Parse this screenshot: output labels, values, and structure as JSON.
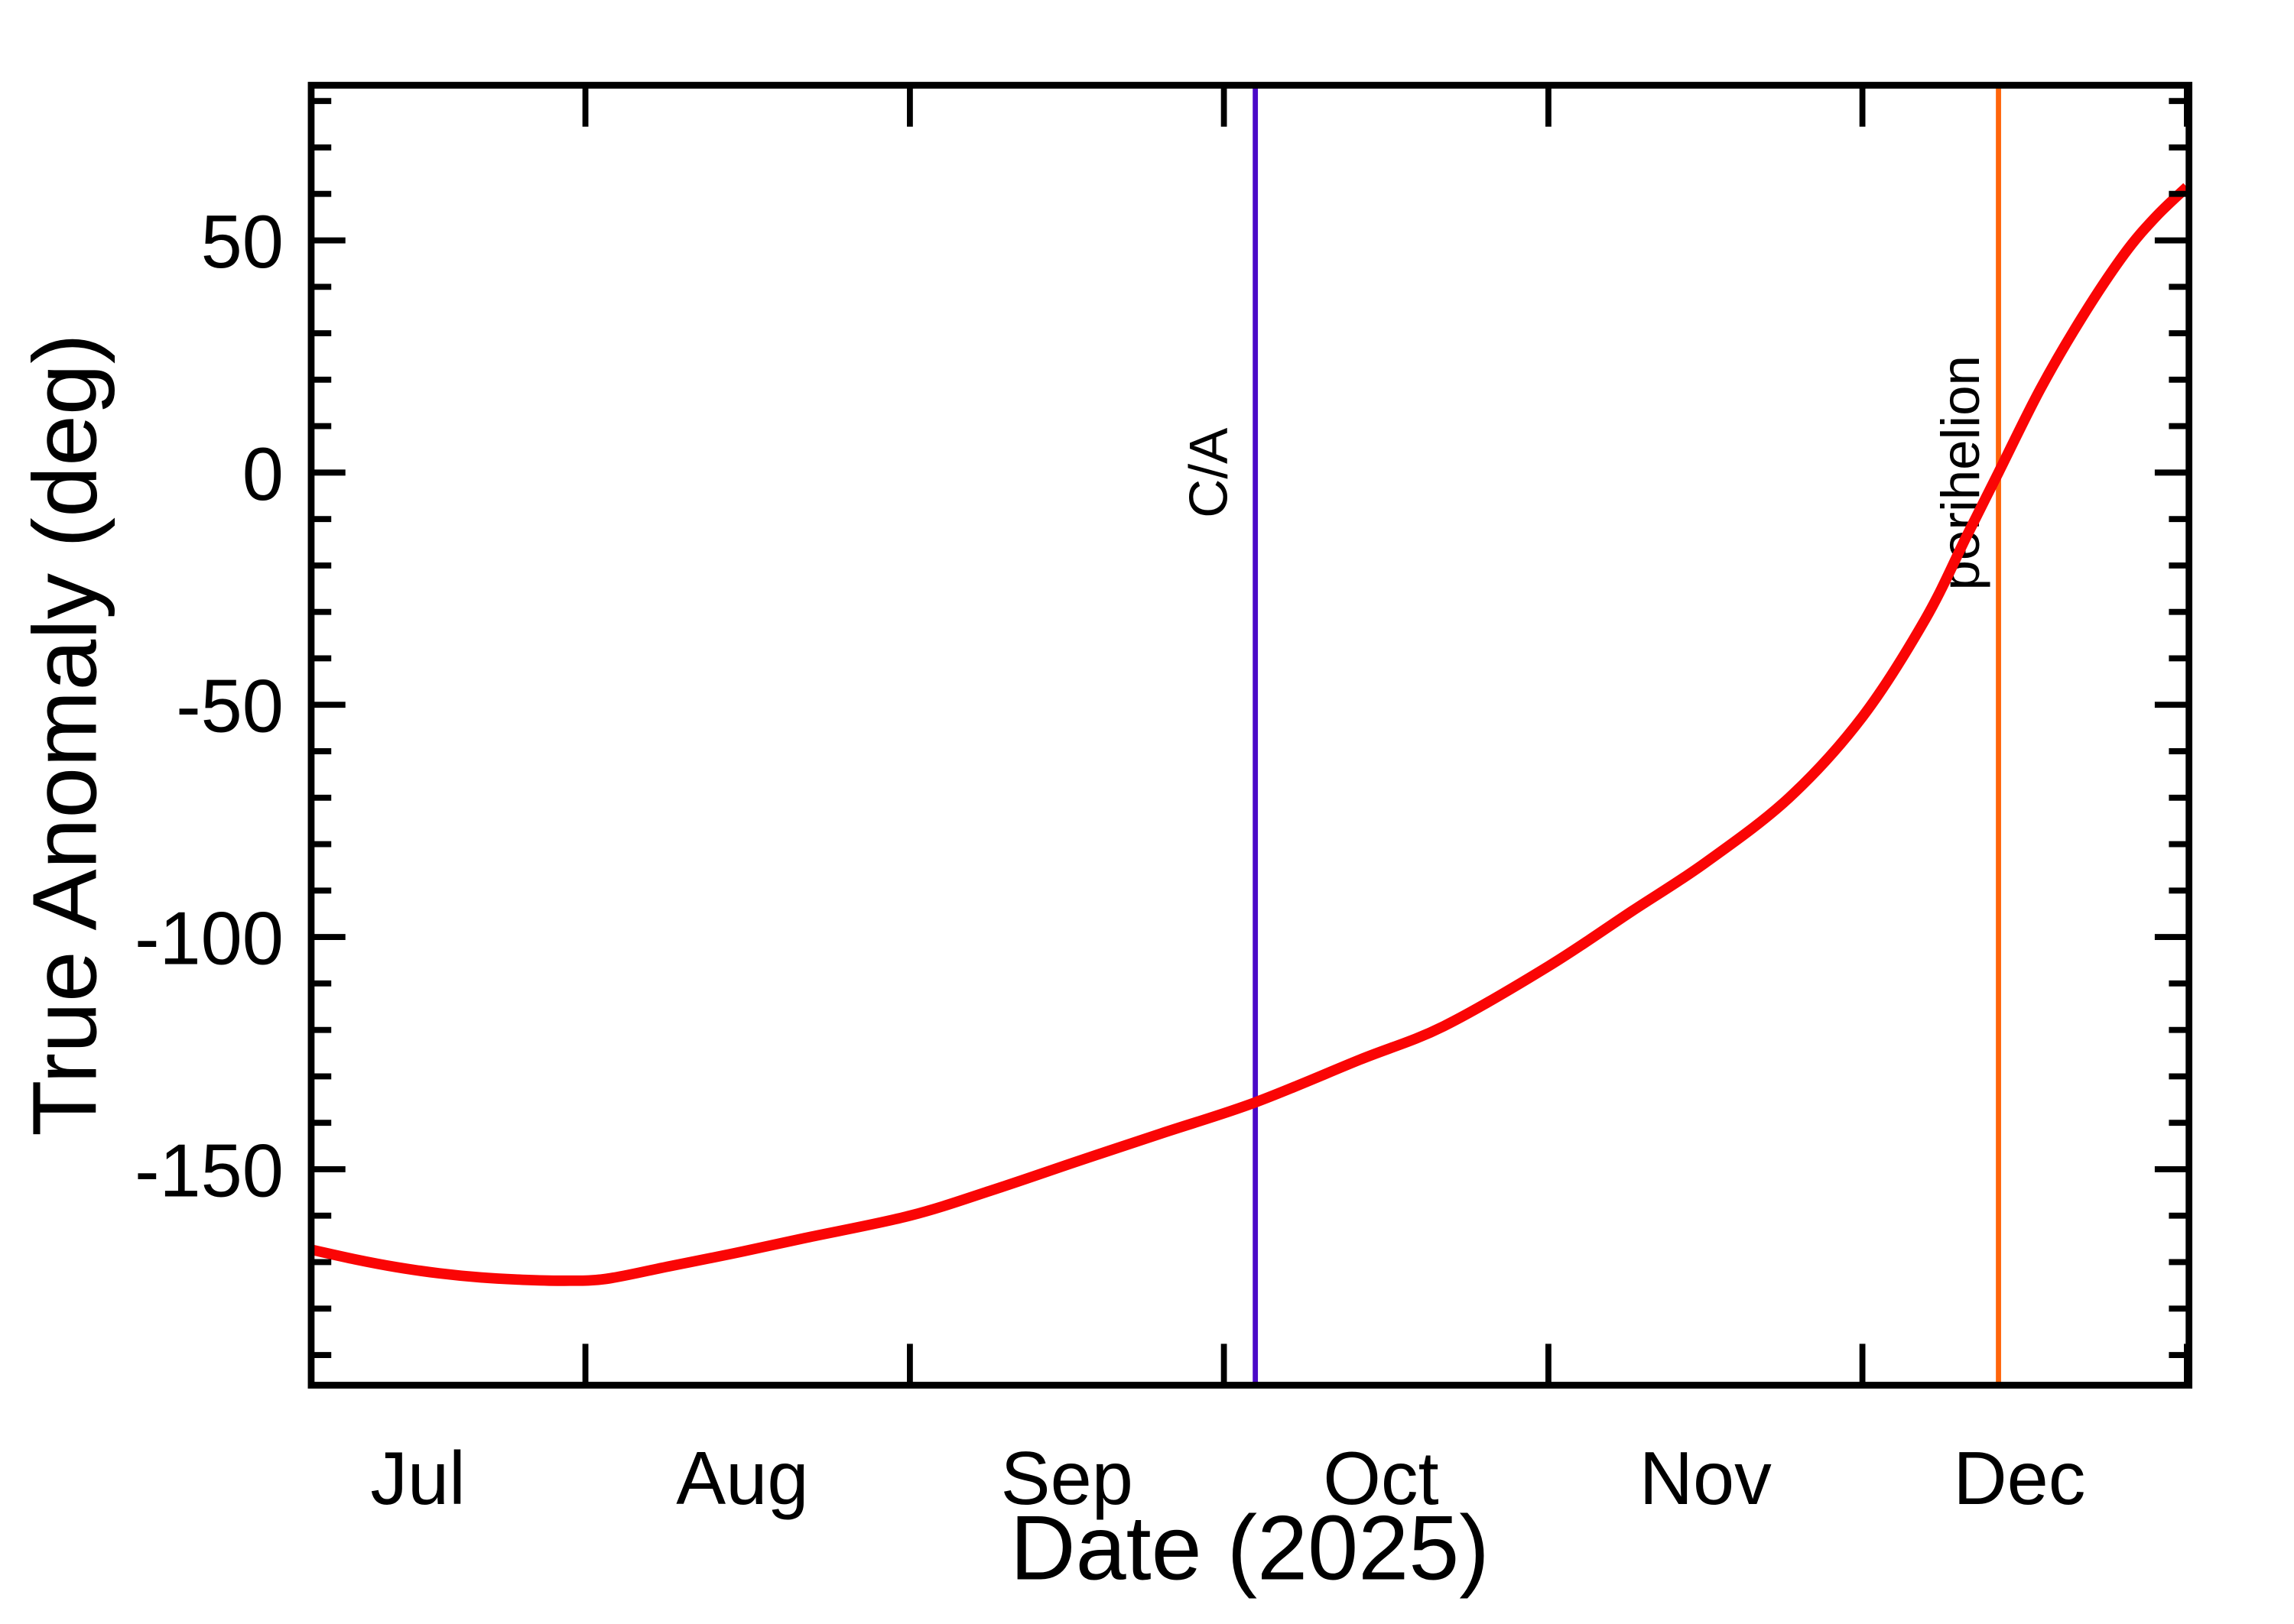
{
  "figure": {
    "background": "#ffffff",
    "axis_color": "#000000"
  },
  "chart_data": {
    "type": "line",
    "title": "",
    "xlabel": "Date (2025)",
    "ylabel": "True Anomaly (deg)",
    "grid": false,
    "legend": "none",
    "ylim": [
      -196.5,
      83.4
    ],
    "xlim_dates": [
      "2025-07-05",
      "2026-01-01"
    ],
    "y_major_ticks": [
      50,
      0,
      -50,
      -100,
      -150
    ],
    "y_minor_step": 10,
    "x_tick_dates": [
      "2025-08-01",
      "2025-09-01",
      "2025-10-01",
      "2025-11-01",
      "2025-12-01",
      "2026-01-01"
    ],
    "x_month_labels": [
      {
        "label": "Jul",
        "date": "2025-07-16"
      },
      {
        "label": "Aug",
        "date": "2025-08-16"
      },
      {
        "label": "Sep",
        "date": "2025-09-16"
      },
      {
        "label": "Oct",
        "date": "2025-10-16"
      },
      {
        "label": "Nov",
        "date": "2025-11-16"
      },
      {
        "label": "Dec",
        "date": "2025-12-16"
      }
    ],
    "series": [
      {
        "name": "true-anomaly",
        "color": "#fa0505",
        "points": [
          [
            "2025-07-05",
            -166.9
          ],
          [
            "2025-07-10",
            -169.4
          ],
          [
            "2025-07-14",
            -171.1
          ],
          [
            "2025-07-18",
            -172.4
          ],
          [
            "2025-07-22",
            -173.3
          ],
          [
            "2025-07-26",
            -173.8
          ],
          [
            "2025-07-30",
            -174.0
          ],
          [
            "2025-08-03",
            -173.6
          ],
          [
            "2025-08-09",
            -170.9
          ],
          [
            "2025-08-15",
            -168.2
          ],
          [
            "2025-08-22",
            -164.8
          ],
          [
            "2025-09-01",
            -160.0
          ],
          [
            "2025-09-09",
            -154.4
          ],
          [
            "2025-09-17",
            -148.3
          ],
          [
            "2025-09-25",
            -142.3
          ],
          [
            "2025-10-04",
            -135.6
          ],
          [
            "2025-10-14",
            -126.4
          ],
          [
            "2025-10-22",
            -119.2
          ],
          [
            "2025-11-01",
            -106.3
          ],
          [
            "2025-11-09",
            -94.4
          ],
          [
            "2025-11-16",
            -84.0
          ],
          [
            "2025-11-24",
            -70.0
          ],
          [
            "2025-12-01",
            -52.6
          ],
          [
            "2025-12-07",
            -31.6
          ],
          [
            "2025-12-11",
            -13.5
          ],
          [
            "2025-12-14",
            0.0
          ],
          [
            "2025-12-18",
            18.0
          ],
          [
            "2025-12-22",
            33.5
          ],
          [
            "2025-12-26",
            47.0
          ],
          [
            "2025-12-29",
            55.0
          ],
          [
            "2026-01-01",
            61.5
          ]
        ]
      }
    ],
    "event_lines": [
      {
        "label": "C/A",
        "date": "2025-10-04",
        "color": "#4b09c8",
        "label_offset": -38
      },
      {
        "label": "perihelion",
        "date": "2025-12-14",
        "color": "#ff640a",
        "label_offset": -26
      }
    ]
  }
}
